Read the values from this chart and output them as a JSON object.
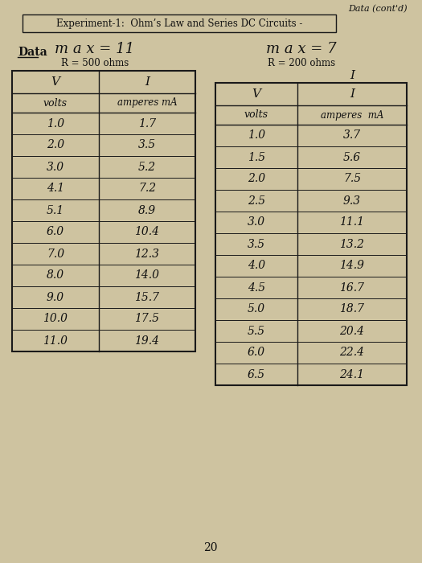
{
  "header_box_text": "Experiment-1:  Ohm’s Law and Series DC Circuits -",
  "header_right_text": "Data (cont'd)",
  "data_label": "Data",
  "table1_title_line1": "m a x = 11",
  "table1_title_line2": "R = 500 ohms",
  "table2_title_line1": "m a x = 7",
  "table2_title_line2": "R = 200 ohms",
  "table1_col1_header": "V",
  "table1_col1_sub": "volts",
  "table1_col2_header": "I",
  "table1_col2_sub": "amperes mA",
  "table1_data": [
    [
      "1.0",
      "1.7"
    ],
    [
      "2.0",
      "3.5"
    ],
    [
      "3.0",
      "5.2"
    ],
    [
      "4.1",
      "7.2"
    ],
    [
      "5.1",
      "8.9"
    ],
    [
      "6.0",
      "10.4"
    ],
    [
      "7.0",
      "12.3"
    ],
    [
      "8.0",
      "14.0"
    ],
    [
      "9.0",
      "15.7"
    ],
    [
      "10.0",
      "17.5"
    ],
    [
      "11.0",
      "19.4"
    ]
  ],
  "table2_col1_header": "V",
  "table2_col1_sub": "volts",
  "table2_col2_header": "I",
  "table2_col2_sub": "amperes  mA",
  "table2_data": [
    [
      "1.0",
      "3.7"
    ],
    [
      "1.5",
      "5.6"
    ],
    [
      "2.0",
      "7.5"
    ],
    [
      "2.5",
      "9.3"
    ],
    [
      "3.0",
      "11.1"
    ],
    [
      "3.5",
      "13.2"
    ],
    [
      "4.0",
      "14.9"
    ],
    [
      "4.5",
      "16.7"
    ],
    [
      "5.0",
      "18.7"
    ],
    [
      "5.5",
      "20.4"
    ],
    [
      "6.0",
      "22.4"
    ],
    [
      "6.5",
      "24.1"
    ]
  ],
  "page_number": "20",
  "bg_color": "#cec3a0",
  "line_color": "#1a1a1a",
  "text_color": "#111111"
}
